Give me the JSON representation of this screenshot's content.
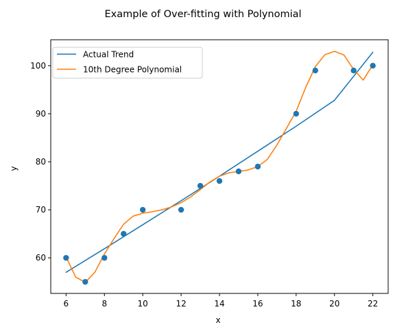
{
  "chart_data": {
    "type": "line",
    "title": "Example of Over-fitting with Polynomial",
    "xlabel": "x",
    "ylabel": "y",
    "xlim": [
      5.2,
      22.8
    ],
    "ylim": [
      52.6,
      105.4
    ],
    "xticks": [
      6,
      8,
      10,
      12,
      14,
      16,
      18,
      20,
      22
    ],
    "yticks": [
      60,
      70,
      80,
      90,
      100
    ],
    "grid": false,
    "legend_position": "top-left",
    "scatter": {
      "color": "#1f77b4",
      "x": [
        6,
        7,
        8,
        9,
        10,
        12,
        13,
        14,
        15,
        16,
        18,
        19,
        21,
        22
      ],
      "y": [
        60,
        55,
        60,
        65,
        70,
        70,
        75,
        76,
        78,
        79,
        90,
        99,
        99,
        100
      ]
    },
    "series": [
      {
        "name": "Actual Trend",
        "color": "#1f77b4",
        "x": [
          6,
          8,
          10,
          12,
          14,
          16,
          18,
          20,
          22
        ],
        "y": [
          57.0,
          61.9,
          66.9,
          71.9,
          77.0,
          82.2,
          87.4,
          92.8,
          102.8
        ]
      },
      {
        "name": "10th Degree Polynomial",
        "color": "#ff7f0e",
        "x": [
          6,
          6.5,
          7,
          7.5,
          8,
          8.5,
          9,
          9.5,
          10,
          10.5,
          11,
          11.5,
          12,
          12.5,
          13,
          13.5,
          14,
          14.5,
          15,
          15.5,
          16,
          16.5,
          17,
          17.5,
          18,
          18.5,
          19,
          19.5,
          20,
          20.5,
          21,
          21.5,
          22
        ],
        "y": [
          60.2,
          56.0,
          54.9,
          57.0,
          60.8,
          64.0,
          67.0,
          68.7,
          69.3,
          69.6,
          70.0,
          70.6,
          71.5,
          72.7,
          74.2,
          75.8,
          77.0,
          77.7,
          78.0,
          78.3,
          79.0,
          80.5,
          83.5,
          87.0,
          90.5,
          95.5,
          99.8,
          102.3,
          103.0,
          102.2,
          99.2,
          97.0,
          100.2
        ]
      }
    ]
  }
}
